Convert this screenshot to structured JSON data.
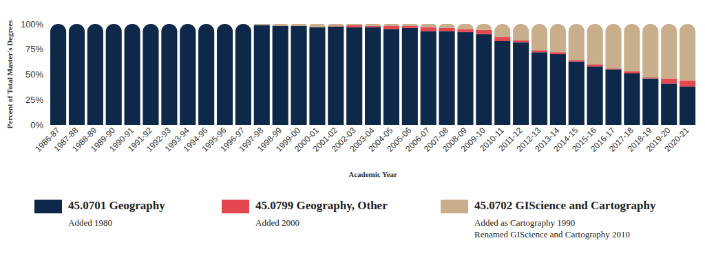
{
  "chart_data": {
    "type": "bar",
    "stacked": true,
    "grid": false,
    "legend": "bottom",
    "x_label": "Academic Year",
    "y_label": "Percent of Total Master's Degrees",
    "categories": [
      "1986-87",
      "1987-88",
      "1988-89",
      "1989-90",
      "1990-91",
      "1991-92",
      "1992-93",
      "1993-94",
      "1994-95",
      "1995-96",
      "1996-97",
      "1997-98",
      "1998-99",
      "1999-00",
      "2000-01",
      "2001-02",
      "2002-03",
      "2003-04",
      "2004-05",
      "2005-06",
      "2006-07",
      "2007-08",
      "2008-09",
      "2009-10",
      "2010-11",
      "2011-12",
      "2012-13",
      "2013-14",
      "2014-15",
      "2015-16",
      "2016-17",
      "2017-18",
      "2018-19",
      "2019-20",
      "2020-21"
    ],
    "ylim": [
      0,
      100
    ],
    "yticks": [
      {
        "value": 0,
        "label": "0%"
      },
      {
        "value": 25,
        "label": "25%"
      },
      {
        "value": 50,
        "label": "50%"
      },
      {
        "value": 75,
        "label": "75%"
      },
      {
        "value": 100,
        "label": "100%"
      }
    ],
    "series": [
      {
        "name": "45.0701 Geography",
        "color": "#0d2849",
        "notes": [
          "Added 1980"
        ],
        "values": [
          100,
          100,
          100,
          100,
          100,
          100,
          100,
          100,
          100,
          100,
          100,
          99,
          98,
          98,
          97,
          97.5,
          97,
          97,
          95,
          96,
          93,
          93,
          92,
          90,
          83,
          82,
          72,
          70,
          63,
          58,
          55,
          51,
          46,
          41,
          38
        ]
      },
      {
        "name": "45.0799 Geography, Other",
        "color": "#e5474f",
        "notes": [
          "Added 2000"
        ],
        "values": [
          0,
          0,
          0,
          0,
          0,
          0,
          0,
          0,
          0,
          0,
          0,
          0,
          0,
          0,
          0,
          0.5,
          2,
          1,
          3,
          2,
          4,
          3,
          3,
          4,
          4,
          2,
          2,
          2,
          1,
          2,
          1,
          2,
          1,
          5,
          6
        ]
      },
      {
        "name": "45.0702 GIScience and Cartography",
        "color": "#c8ae8b",
        "notes": [
          "Added as Cartography 1990",
          "Renamed GIScience and Cartography 2010"
        ],
        "values": [
          0,
          0,
          0,
          0,
          0,
          0,
          0,
          0,
          0,
          0,
          0,
          1,
          2,
          2,
          3,
          2,
          1,
          2,
          2,
          2,
          3,
          4,
          5,
          6,
          13,
          16,
          26,
          28,
          36,
          40,
          44,
          47,
          53,
          54,
          56
        ]
      }
    ]
  }
}
